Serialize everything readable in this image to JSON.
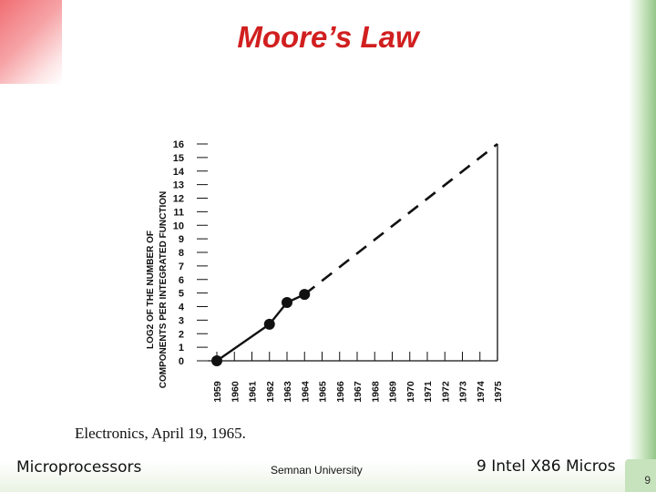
{
  "slide": {
    "title": "Moore’s Law",
    "caption": "Electronics, April 19, 1965.",
    "footer_left": "Microprocessors",
    "footer_center": "Semnan University",
    "footer_right_num": "9",
    "footer_right_text": "Intel X86 Micros",
    "slide_number": "9",
    "title_color": "#d11f1f"
  },
  "chart_data": {
    "type": "line",
    "title": "",
    "xlabel": "",
    "ylabel_line1": "LOG2 OF THE NUMBER OF",
    "ylabel_line2": "COMPONENTS PER INTEGRATED FUNCTION",
    "x_ticks": [
      "1959",
      "1960",
      "1961",
      "1962",
      "1963",
      "1964",
      "1965",
      "1966",
      "1967",
      "1968",
      "1969",
      "1970",
      "1971",
      "1972",
      "1973",
      "1974",
      "1975"
    ],
    "y_ticks": [
      0,
      1,
      2,
      3,
      4,
      5,
      6,
      7,
      8,
      9,
      10,
      11,
      12,
      13,
      14,
      15,
      16
    ],
    "xlim": [
      1959,
      1975
    ],
    "ylim": [
      0,
      16
    ],
    "grid": false,
    "series": [
      {
        "style": "solid-with-markers",
        "x": [
          1959,
          1962,
          1963,
          1964
        ],
        "y": [
          0,
          2.7,
          4.3,
          4.9
        ]
      },
      {
        "style": "dashed",
        "x": [
          1964,
          1975
        ],
        "y": [
          4.9,
          16.0
        ]
      }
    ]
  }
}
